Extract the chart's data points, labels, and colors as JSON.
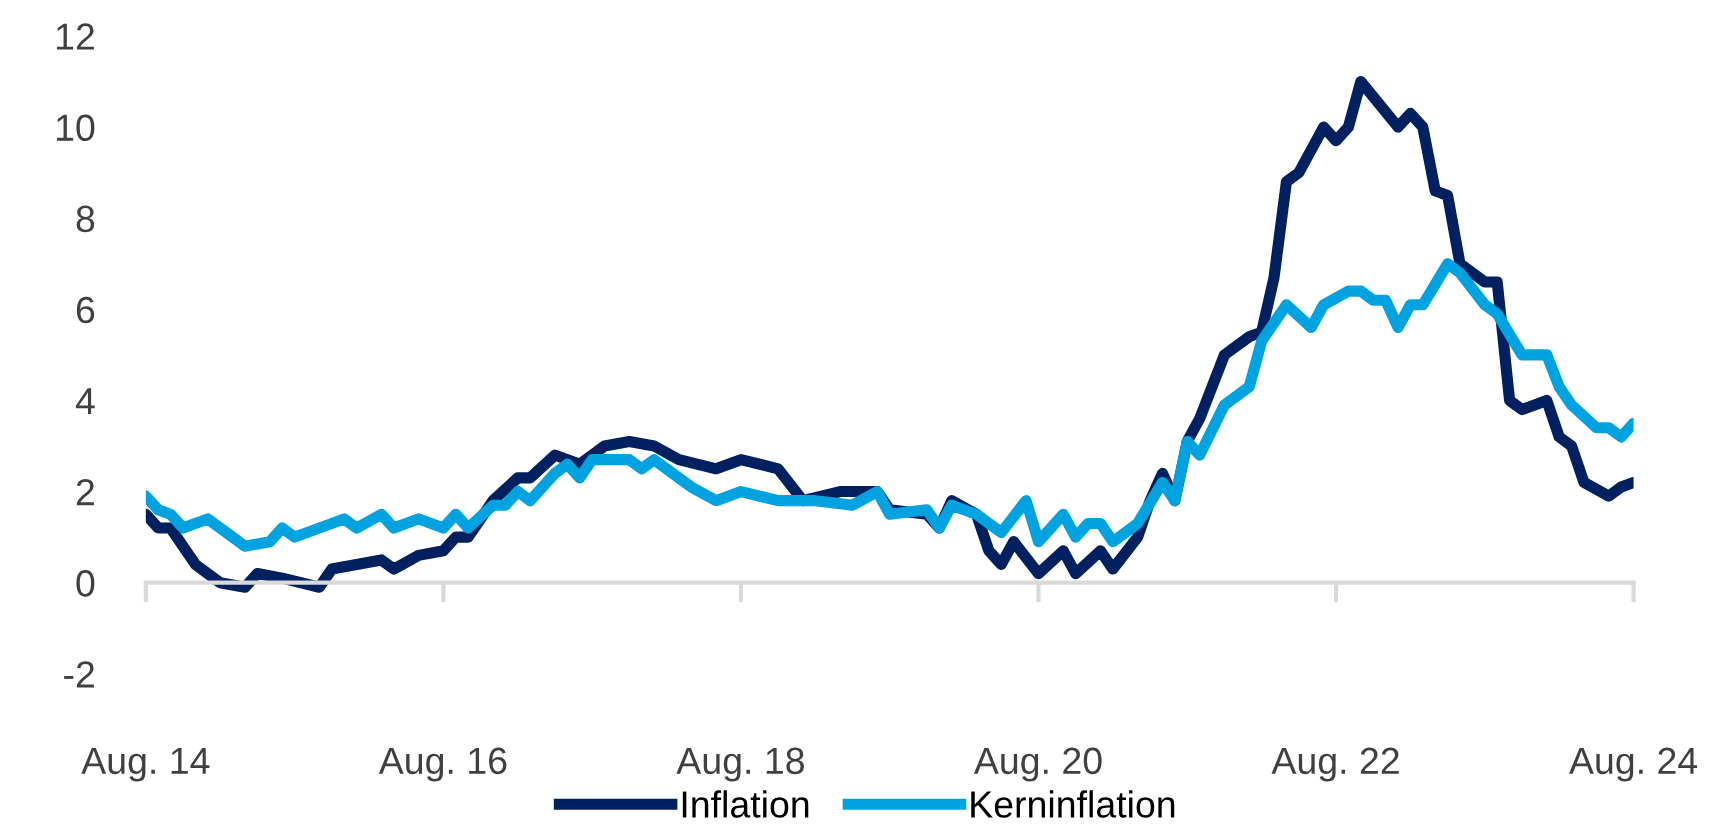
{
  "chart_data": {
    "type": "line",
    "legend": "bottom",
    "marker": "none",
    "line_style": "solid",
    "xlim": [
      "2014-08",
      "2024-08"
    ],
    "xticks": [
      {
        "value": "2014-08",
        "label": "Aug. 14"
      },
      {
        "value": "2016-08",
        "label": "Aug. 16"
      },
      {
        "value": "2018-08",
        "label": "Aug. 18"
      },
      {
        "value": "2020-08",
        "label": "Aug. 20"
      },
      {
        "value": "2022-08",
        "label": "Aug. 22"
      },
      {
        "value": "2024-08",
        "label": "Aug. 24"
      }
    ],
    "ylim": [
      -2,
      12
    ],
    "yticks": [
      -2,
      0,
      2,
      4,
      6,
      8,
      10,
      12
    ],
    "series": [
      {
        "name": "Inflation",
        "color": "#002060",
        "x": [
          "2014-08",
          "2014-09",
          "2014-10",
          "2014-12",
          "2015-02",
          "2015-04",
          "2015-05",
          "2015-07",
          "2015-10",
          "2015-11",
          "2016-01",
          "2016-03",
          "2016-04",
          "2016-06",
          "2016-08",
          "2016-09",
          "2016-10",
          "2016-12",
          "2017-02",
          "2017-03",
          "2017-05",
          "2017-07",
          "2017-09",
          "2017-11",
          "2018-01",
          "2018-03",
          "2018-06",
          "2018-08",
          "2018-11",
          "2019-01",
          "2019-04",
          "2019-07",
          "2019-08",
          "2019-11",
          "2019-12",
          "2020-01",
          "2020-03",
          "2020-04",
          "2020-05",
          "2020-06",
          "2020-08",
          "2020-10",
          "2020-11",
          "2021-01",
          "2021-02",
          "2021-04",
          "2021-05",
          "2021-06",
          "2021-07",
          "2021-08",
          "2021-09",
          "2021-11",
          "2022-01",
          "2022-02",
          "2022-03",
          "2022-04",
          "2022-05",
          "2022-07",
          "2022-08",
          "2022-09",
          "2022-10",
          "2023-01",
          "2023-02",
          "2023-03",
          "2023-04",
          "2023-05",
          "2023-06",
          "2023-08",
          "2023-09",
          "2023-10",
          "2023-11",
          "2024-01",
          "2024-02",
          "2024-03",
          "2024-04",
          "2024-06",
          "2024-07",
          "2024-08"
        ],
        "values": [
          1.5,
          1.2,
          1.2,
          0.4,
          0.0,
          -0.1,
          0.2,
          0.1,
          -0.1,
          0.3,
          0.4,
          0.5,
          0.3,
          0.6,
          0.7,
          1.0,
          1.0,
          1.8,
          2.3,
          2.3,
          2.8,
          2.6,
          3.0,
          3.1,
          3.0,
          2.7,
          2.5,
          2.7,
          2.5,
          1.8,
          2.0,
          2.0,
          1.6,
          1.5,
          1.2,
          1.8,
          1.5,
          0.7,
          0.4,
          0.9,
          0.2,
          0.7,
          0.2,
          0.7,
          0.3,
          1.0,
          1.8,
          2.4,
          1.8,
          3.1,
          3.6,
          5.0,
          5.4,
          5.5,
          6.7,
          8.8,
          9.0,
          10.0,
          9.7,
          10.0,
          11.0,
          10.0,
          10.3,
          10.0,
          8.6,
          8.5,
          7.0,
          6.6,
          6.6,
          4.0,
          3.8,
          4.0,
          3.2,
          3.0,
          2.2,
          1.9,
          2.1,
          2.2
        ]
      },
      {
        "name": "Kerninflation",
        "color": "#00a3e0",
        "x": [
          "2014-08",
          "2014-09",
          "2014-10",
          "2014-11",
          "2015-01",
          "2015-04",
          "2015-06",
          "2015-07",
          "2015-08",
          "2015-12",
          "2016-01",
          "2016-03",
          "2016-04",
          "2016-06",
          "2016-08",
          "2016-09",
          "2016-10",
          "2016-12",
          "2017-01",
          "2017-02",
          "2017-03",
          "2017-05",
          "2017-06",
          "2017-07",
          "2017-08",
          "2017-11",
          "2017-12",
          "2018-01",
          "2018-03",
          "2018-04",
          "2018-06",
          "2018-08",
          "2018-11",
          "2019-02",
          "2019-05",
          "2019-07",
          "2019-08",
          "2019-11",
          "2019-12",
          "2020-01",
          "2020-03",
          "2020-05",
          "2020-07",
          "2020-08",
          "2020-10",
          "2020-11",
          "2020-12",
          "2021-01",
          "2021-02",
          "2021-04",
          "2021-06",
          "2021-07",
          "2021-08",
          "2021-09",
          "2021-11",
          "2022-01",
          "2022-02",
          "2022-04",
          "2022-06",
          "2022-07",
          "2022-09",
          "2022-10",
          "2022-11",
          "2022-12",
          "2023-01",
          "2023-02",
          "2023-03",
          "2023-05",
          "2023-06",
          "2023-08",
          "2023-09",
          "2023-11",
          "2024-01",
          "2024-02",
          "2024-03",
          "2024-05",
          "2024-06",
          "2024-07",
          "2024-08"
        ],
        "values": [
          1.9,
          1.6,
          1.5,
          1.2,
          1.4,
          0.8,
          0.9,
          1.2,
          1.0,
          1.4,
          1.2,
          1.5,
          1.2,
          1.4,
          1.2,
          1.5,
          1.2,
          1.7,
          1.7,
          2.0,
          1.8,
          2.4,
          2.6,
          2.3,
          2.7,
          2.7,
          2.5,
          2.7,
          2.3,
          2.1,
          1.8,
          2.0,
          1.8,
          1.8,
          1.7,
          2.0,
          1.5,
          1.6,
          1.2,
          1.7,
          1.5,
          1.1,
          1.8,
          0.9,
          1.5,
          1.0,
          1.3,
          1.3,
          0.9,
          1.3,
          2.2,
          1.8,
          3.1,
          2.8,
          3.9,
          4.3,
          5.3,
          6.1,
          5.6,
          6.1,
          6.4,
          6.4,
          6.2,
          6.2,
          5.6,
          6.1,
          6.1,
          7.0,
          6.8,
          6.1,
          5.9,
          5.0,
          5.0,
          4.3,
          3.9,
          3.4,
          3.4,
          3.2,
          3.5
        ]
      }
    ]
  }
}
